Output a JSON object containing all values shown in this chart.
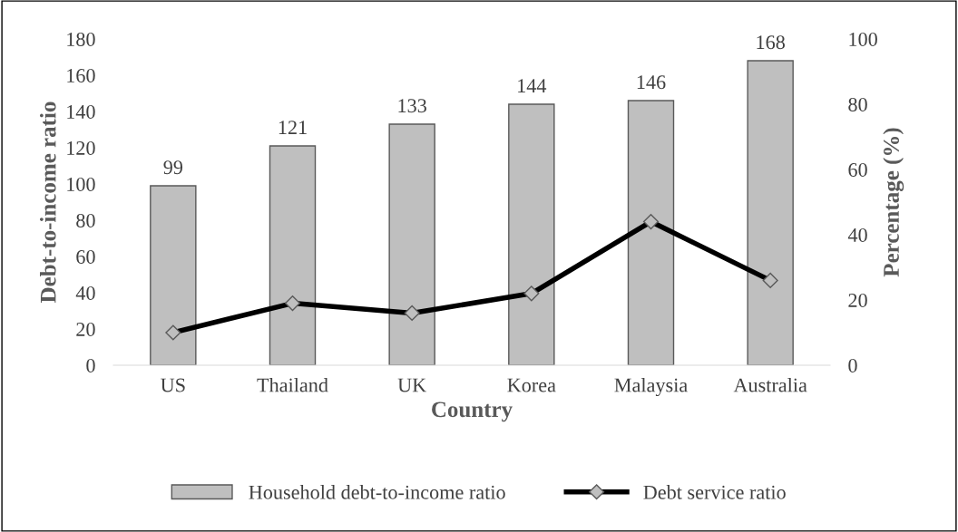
{
  "chart_data": {
    "type": "bar",
    "xlabel": "Country",
    "ylabel": "Debt-to-income ratio",
    "y2label": "Percentage (%)",
    "categories": [
      "US",
      "Thailand",
      "UK",
      "Korea",
      "Malaysia",
      "Australia"
    ],
    "series": [
      {
        "name": "Household debt-to-income ratio",
        "color": "#bfbfbf",
        "values": [
          99,
          121,
          133,
          144,
          146,
          168
        ],
        "value_labels": [
          "99",
          "121",
          "133",
          "144",
          "146",
          "168"
        ]
      },
      {
        "name": "Debt service ratio",
        "type": "line",
        "axis": "y2",
        "color": "#000000",
        "marker": "diamond",
        "values": [
          10,
          19,
          16,
          22,
          44,
          26
        ]
      }
    ],
    "ylim": [
      0,
      180
    ],
    "yticks": [
      0,
      20,
      40,
      60,
      80,
      100,
      120,
      140,
      160,
      180
    ],
    "y2lim": [
      0,
      100
    ],
    "y2ticks": [
      0,
      20,
      40,
      60,
      80,
      100
    ],
    "grid": false,
    "legend": "bottom",
    "line_style": "solid"
  }
}
